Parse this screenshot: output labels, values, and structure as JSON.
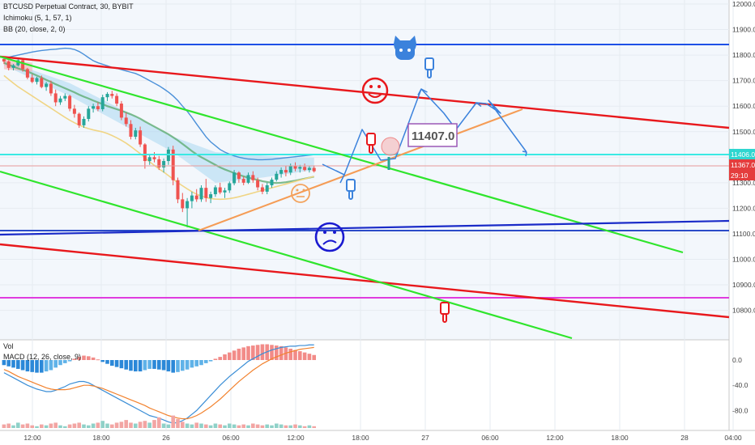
{
  "header": {
    "symbol_line": "BTCUSD Perpetual Contract, 30, BYBIT",
    "indicator1": "Ichimoku (5, 1, 57, 1)",
    "indicator2": "BB (20, close, 2, 0)"
  },
  "sub_header": {
    "vol": "Vol",
    "macd": "MACD (12, 26, close, 9)"
  },
  "chart_data": {
    "type": "candlestick",
    "symbol": "BTCUSD Perpetual Contract",
    "interval": "30",
    "exchange": "BYBIT",
    "price_axis": {
      "ticks": [
        "12000.0",
        "11900.0",
        "11800.0",
        "11700.0",
        "11600.0",
        "11500.0",
        "11400.0",
        "11300.0",
        "11200.0",
        "11100.0",
        "11000.0",
        "10900.0",
        "10800.0"
      ],
      "range": [
        10760,
        12010
      ]
    },
    "macd_axis": {
      "ticks": [
        "0.0",
        "-40.0",
        "-80.0"
      ],
      "range": [
        -112,
        30
      ]
    },
    "time_axis": {
      "ticks": [
        "12:00",
        "18:00",
        "26",
        "06:00",
        "12:00",
        "18:00",
        "27",
        "06:00",
        "12:00",
        "18:00",
        "28",
        "04:00"
      ]
    },
    "price_tags": {
      "line_price": "11406.0",
      "last_price": "11367.0",
      "countdown": "29:10"
    },
    "annotation_price": "11407.0",
    "candles": [
      {
        "o": 11785,
        "h": 11795,
        "l": 11765,
        "c": 11775
      },
      {
        "o": 11775,
        "h": 11780,
        "l": 11740,
        "c": 11750
      },
      {
        "o": 11750,
        "h": 11765,
        "l": 11740,
        "c": 11760
      },
      {
        "o": 11760,
        "h": 11790,
        "l": 11755,
        "c": 11780
      },
      {
        "o": 11780,
        "h": 11785,
        "l": 11735,
        "c": 11745
      },
      {
        "o": 11745,
        "h": 11750,
        "l": 11705,
        "c": 11712
      },
      {
        "o": 11712,
        "h": 11725,
        "l": 11690,
        "c": 11695
      },
      {
        "o": 11695,
        "h": 11715,
        "l": 11685,
        "c": 11710
      },
      {
        "o": 11710,
        "h": 11720,
        "l": 11670,
        "c": 11675
      },
      {
        "o": 11675,
        "h": 11695,
        "l": 11660,
        "c": 11688
      },
      {
        "o": 11688,
        "h": 11700,
        "l": 11640,
        "c": 11650
      },
      {
        "o": 11650,
        "h": 11665,
        "l": 11600,
        "c": 11615
      },
      {
        "o": 11615,
        "h": 11640,
        "l": 11605,
        "c": 11630
      },
      {
        "o": 11630,
        "h": 11650,
        "l": 11620,
        "c": 11640
      },
      {
        "o": 11640,
        "h": 11645,
        "l": 11580,
        "c": 11590
      },
      {
        "o": 11590,
        "h": 11605,
        "l": 11555,
        "c": 11570
      },
      {
        "o": 11570,
        "h": 11575,
        "l": 11515,
        "c": 11525
      },
      {
        "o": 11525,
        "h": 11560,
        "l": 11515,
        "c": 11550
      },
      {
        "o": 11550,
        "h": 11600,
        "l": 11540,
        "c": 11590
      },
      {
        "o": 11590,
        "h": 11610,
        "l": 11575,
        "c": 11600
      },
      {
        "o": 11600,
        "h": 11615,
        "l": 11580,
        "c": 11588
      },
      {
        "o": 11588,
        "h": 11645,
        "l": 11580,
        "c": 11635
      },
      {
        "o": 11635,
        "h": 11655,
        "l": 11620,
        "c": 11648
      },
      {
        "o": 11648,
        "h": 11660,
        "l": 11630,
        "c": 11640
      },
      {
        "o": 11640,
        "h": 11650,
        "l": 11600,
        "c": 11610
      },
      {
        "o": 11610,
        "h": 11620,
        "l": 11545,
        "c": 11555
      },
      {
        "o": 11555,
        "h": 11575,
        "l": 11520,
        "c": 11530
      },
      {
        "o": 11530,
        "h": 11545,
        "l": 11470,
        "c": 11480
      },
      {
        "o": 11480,
        "h": 11515,
        "l": 11470,
        "c": 11505
      },
      {
        "o": 11505,
        "h": 11520,
        "l": 11440,
        "c": 11450
      },
      {
        "o": 11450,
        "h": 11455,
        "l": 11355,
        "c": 11385
      },
      {
        "o": 11385,
        "h": 11410,
        "l": 11370,
        "c": 11400
      },
      {
        "o": 11400,
        "h": 11420,
        "l": 11380,
        "c": 11392
      },
      {
        "o": 11392,
        "h": 11405,
        "l": 11350,
        "c": 11360
      },
      {
        "o": 11360,
        "h": 11395,
        "l": 11340,
        "c": 11385
      },
      {
        "o": 11385,
        "h": 11440,
        "l": 11370,
        "c": 11430
      },
      {
        "o": 11430,
        "h": 11445,
        "l": 11290,
        "c": 11310
      },
      {
        "o": 11310,
        "h": 11320,
        "l": 11220,
        "c": 11235
      },
      {
        "o": 11235,
        "h": 11260,
        "l": 11185,
        "c": 11200
      },
      {
        "o": 11200,
        "h": 11240,
        "l": 11125,
        "c": 11228
      },
      {
        "o": 11228,
        "h": 11265,
        "l": 11200,
        "c": 11250
      },
      {
        "o": 11250,
        "h": 11275,
        "l": 11225,
        "c": 11235
      },
      {
        "o": 11235,
        "h": 11290,
        "l": 11225,
        "c": 11280
      },
      {
        "o": 11280,
        "h": 11315,
        "l": 11225,
        "c": 11240
      },
      {
        "o": 11240,
        "h": 11265,
        "l": 11220,
        "c": 11255
      },
      {
        "o": 11255,
        "h": 11290,
        "l": 11245,
        "c": 11282
      },
      {
        "o": 11282,
        "h": 11300,
        "l": 11255,
        "c": 11262
      },
      {
        "o": 11262,
        "h": 11280,
        "l": 11240,
        "c": 11270
      },
      {
        "o": 11270,
        "h": 11305,
        "l": 11260,
        "c": 11298
      },
      {
        "o": 11298,
        "h": 11350,
        "l": 11290,
        "c": 11340
      },
      {
        "o": 11340,
        "h": 11345,
        "l": 11300,
        "c": 11315
      },
      {
        "o": 11315,
        "h": 11325,
        "l": 11290,
        "c": 11300
      },
      {
        "o": 11300,
        "h": 11340,
        "l": 11295,
        "c": 11330
      },
      {
        "o": 11330,
        "h": 11345,
        "l": 11300,
        "c": 11310
      },
      {
        "o": 11310,
        "h": 11320,
        "l": 11270,
        "c": 11282
      },
      {
        "o": 11282,
        "h": 11295,
        "l": 11255,
        "c": 11265
      },
      {
        "o": 11265,
        "h": 11300,
        "l": 11255,
        "c": 11290
      },
      {
        "o": 11290,
        "h": 11320,
        "l": 11280,
        "c": 11312
      },
      {
        "o": 11312,
        "h": 11345,
        "l": 11305,
        "c": 11335
      },
      {
        "o": 11335,
        "h": 11360,
        "l": 11320,
        "c": 11350
      },
      {
        "o": 11350,
        "h": 11365,
        "l": 11325,
        "c": 11340
      },
      {
        "o": 11340,
        "h": 11375,
        "l": 11330,
        "c": 11365
      },
      {
        "o": 11365,
        "h": 11380,
        "l": 11345,
        "c": 11355
      },
      {
        "o": 11355,
        "h": 11370,
        "l": 11340,
        "c": 11362
      },
      {
        "o": 11362,
        "h": 11375,
        "l": 11345,
        "c": 11350
      },
      {
        "o": 11350,
        "h": 11365,
        "l": 11340,
        "c": 11358
      },
      {
        "o": 11358,
        "h": 11368,
        "l": 11340,
        "c": 11345
      }
    ],
    "lines": {
      "bb_basis": [
        11770,
        11762,
        11755,
        11748,
        11742,
        11736,
        11728,
        11720,
        11712,
        11703,
        11695,
        11686,
        11678,
        11670,
        11662,
        11654,
        11645,
        11637,
        11630,
        11622,
        11615,
        11608,
        11600,
        11594,
        11588,
        11582,
        11575,
        11568,
        11560,
        11551,
        11540,
        11530,
        11520,
        11510,
        11500,
        11490,
        11478,
        11466,
        11452,
        11438,
        11424,
        11411,
        11400,
        11390,
        11380,
        11370,
        11360,
        11352,
        11345,
        11338,
        11331,
        11325,
        11320,
        11315,
        11311,
        11306,
        11303,
        11300,
        11299,
        11300,
        11302,
        11305,
        11308,
        11312,
        11316,
        11320,
        11324
      ],
      "bb_upper": [
        11790,
        11792,
        11796,
        11800,
        11804,
        11808,
        11812,
        11815,
        11818,
        11820,
        11822,
        11823,
        11825,
        11827,
        11826,
        11822,
        11814,
        11803,
        11790,
        11778,
        11770,
        11764,
        11758,
        11752,
        11748,
        11743,
        11738,
        11733,
        11728,
        11720,
        11710,
        11700,
        11690,
        11680,
        11668,
        11655,
        11640,
        11622,
        11600,
        11580,
        11556,
        11530,
        11505,
        11480,
        11460,
        11445,
        11430,
        11420,
        11412,
        11405,
        11400,
        11396,
        11393,
        11392,
        11390,
        11390,
        11391,
        11392,
        11394,
        11396,
        11398,
        11400,
        11402,
        11404,
        11406,
        11408,
        11410
      ],
      "bb_lower": [
        11720,
        11705,
        11690,
        11676,
        11664,
        11652,
        11640,
        11628,
        11616,
        11604,
        11592,
        11580,
        11568,
        11556,
        11545,
        11535,
        11526,
        11518,
        11512,
        11507,
        11503,
        11499,
        11493,
        11485,
        11476,
        11466,
        11455,
        11442,
        11428,
        11414,
        11398,
        11382,
        11368,
        11354,
        11342,
        11328,
        11314,
        11300,
        11288,
        11276,
        11265,
        11255,
        11248,
        11242,
        11238,
        11236,
        11235,
        11236,
        11238,
        11241,
        11245,
        11250,
        11255,
        11260,
        11265,
        11270,
        11275,
        11280,
        11285,
        11290,
        11295,
        11300,
        11305,
        11310,
        11315,
        11320,
        11325
      ]
    },
    "macd": {
      "histogram": [
        -8,
        -10,
        -12,
        -14,
        -16,
        -18,
        -19,
        -20,
        -20,
        -18,
        -16,
        -12,
        -8,
        -5,
        -2,
        2,
        5,
        7,
        6,
        4,
        1,
        -3,
        -6,
        -9,
        -11,
        -13,
        -15,
        -17,
        -18,
        -18,
        -16,
        -14,
        -14,
        -15,
        -16,
        -18,
        -20,
        -19,
        -17,
        -15,
        -12,
        -10,
        -8,
        -5,
        -2,
        2,
        5,
        9,
        12,
        15,
        18,
        20,
        22,
        23,
        24,
        25,
        25,
        24,
        23,
        22,
        20,
        18,
        16,
        14,
        12,
        10,
        8
      ],
      "macd_line": [
        -20,
        -24,
        -28,
        -32,
        -36,
        -40,
        -43,
        -46,
        -48,
        -50,
        -50,
        -48,
        -45,
        -42,
        -38,
        -36,
        -34,
        -34,
        -36,
        -40,
        -44,
        -48,
        -52,
        -56,
        -60,
        -64,
        -68,
        -72,
        -76,
        -80,
        -84,
        -88,
        -90,
        -92,
        -95,
        -98,
        -100,
        -99,
        -96,
        -92,
        -86,
        -80,
        -72,
        -64,
        -56,
        -48,
        -40,
        -33,
        -26,
        -20,
        -14,
        -8,
        -2,
        2,
        6,
        10,
        13,
        16,
        18,
        20,
        21,
        22,
        22,
        23,
        23,
        24,
        24
      ],
      "signal_line": [
        -15,
        -18,
        -22,
        -26,
        -29,
        -32,
        -35,
        -38,
        -41,
        -44,
        -46,
        -47,
        -47,
        -47,
        -46,
        -44,
        -42,
        -40,
        -40,
        -41,
        -43,
        -45,
        -48,
        -51,
        -54,
        -57,
        -60,
        -63,
        -66,
        -69,
        -72,
        -76,
        -79,
        -82,
        -85,
        -88,
        -90,
        -92,
        -93,
        -93,
        -91,
        -88,
        -84,
        -79,
        -74,
        -68,
        -62,
        -55,
        -48,
        -41,
        -34,
        -28,
        -22,
        -16,
        -11,
        -6,
        -2,
        2,
        5,
        8,
        11,
        13,
        15,
        17,
        18,
        19,
        20
      ]
    },
    "volume": [
      4,
      5,
      3,
      6,
      4,
      5,
      3,
      2,
      4,
      3,
      5,
      6,
      3,
      2,
      4,
      5,
      6,
      4,
      3,
      5,
      6,
      8,
      5,
      4,
      6,
      7,
      9,
      6,
      5,
      7,
      8,
      6,
      9,
      12,
      5,
      4,
      14,
      10,
      7,
      5,
      4,
      6,
      5,
      4,
      3,
      5,
      4,
      3,
      5,
      4,
      3,
      4,
      3,
      5,
      4,
      3,
      4,
      3,
      5,
      4,
      3,
      3,
      4,
      3,
      2,
      3,
      2
    ]
  },
  "colors": {
    "up": "#26a69a",
    "down": "#ef5350",
    "red_line": "#e8181c",
    "green_line": "#2fe52c",
    "blue_line": "#1e50e6",
    "cyan_line": "#3ae9e4",
    "magenta_line": "#e03cdf",
    "orange_line": "#f59c55",
    "drawing_blue": "#3b82dc"
  },
  "icons": [
    "github-cat-icon",
    "smiley-face-icon",
    "neutral-face-icon",
    "confused-face-icon",
    "pointing-hand-icon"
  ]
}
